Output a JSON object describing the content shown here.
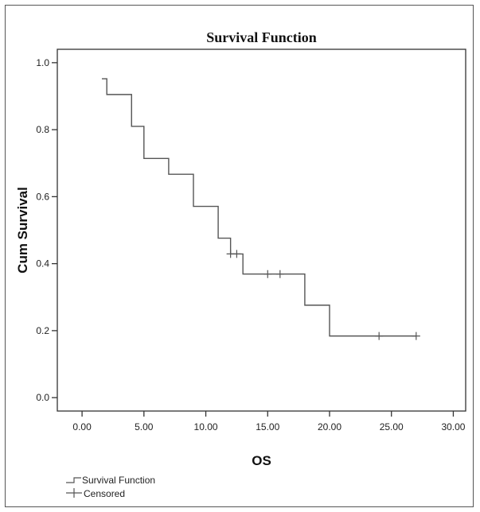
{
  "chart_data": {
    "type": "line",
    "title": "Survival Function",
    "xlabel": "OS",
    "ylabel": "Cum Survival",
    "xlim": [
      -2,
      31
    ],
    "ylim": [
      -0.04,
      1.04
    ],
    "x_ticks": [
      0,
      5,
      10,
      15,
      20,
      25,
      30
    ],
    "x_tick_labels": [
      "0.00",
      "5.00",
      "10.00",
      "15.00",
      "20.00",
      "25.00",
      "30.00"
    ],
    "y_ticks": [
      0.0,
      0.2,
      0.4,
      0.6,
      0.8,
      1.0
    ],
    "y_tick_labels": [
      "0.0",
      "0.2",
      "0.4",
      "0.6",
      "0.8",
      "1.0"
    ],
    "grid": false,
    "legend_position": "bottom-left",
    "series": [
      {
        "name": "Survival Function",
        "kind": "step",
        "points": [
          [
            1.6,
            0.952
          ],
          [
            2.0,
            0.905
          ],
          [
            4.0,
            0.81
          ],
          [
            5.0,
            0.714
          ],
          [
            7.0,
            0.667
          ],
          [
            9.0,
            0.571
          ],
          [
            11.0,
            0.476
          ],
          [
            12.0,
            0.429
          ],
          [
            13.0,
            0.369
          ],
          [
            18.0,
            0.276
          ],
          [
            20.0,
            0.184
          ],
          [
            27.0,
            0.184
          ]
        ]
      },
      {
        "name": "Censored",
        "kind": "marker",
        "points": [
          [
            12.0,
            0.429
          ],
          [
            12.5,
            0.429
          ],
          [
            15.0,
            0.369
          ],
          [
            16.0,
            0.369
          ],
          [
            24.0,
            0.184
          ],
          [
            27.0,
            0.184
          ]
        ]
      }
    ],
    "line_color": "#555555",
    "axis_color": "#333333"
  }
}
